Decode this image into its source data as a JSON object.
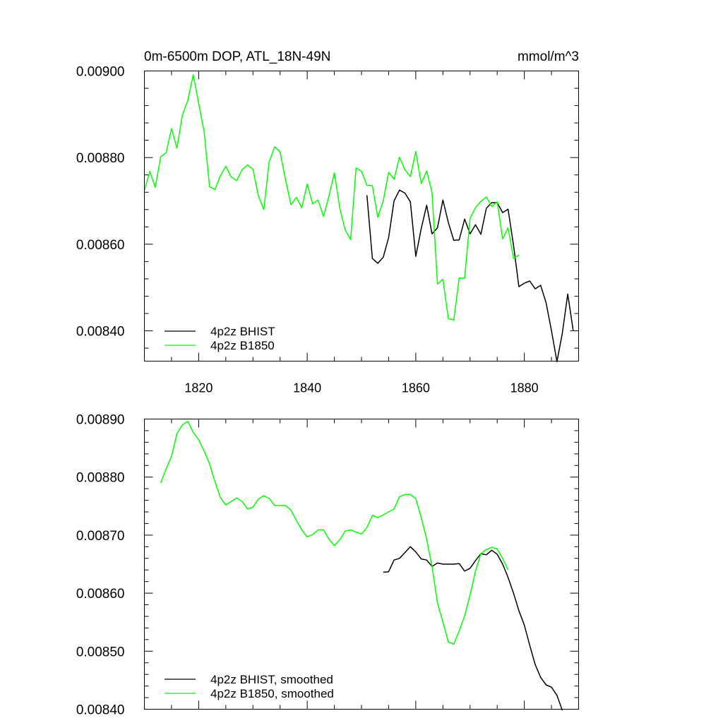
{
  "chart_data": [
    {
      "type": "line",
      "title": "0m-6500m DOP, ATL_18N-49N",
      "units": "mmol/m^3",
      "xlim": [
        1810,
        1890
      ],
      "ylim": [
        0.00833,
        0.009
      ],
      "xticks": [
        1820,
        1840,
        1860,
        1880
      ],
      "yticks": [
        0.0084,
        0.0086,
        0.0088,
        0.009
      ],
      "ytick_labels": [
        "0.00840",
        "0.00860",
        "0.00880",
        "0.00900"
      ],
      "legend_position": "bottom-left",
      "series": [
        {
          "name": "4p2z BHIST",
          "color": "#000000",
          "x": [
            1851,
            1852,
            1853,
            1854,
            1855,
            1856,
            1857,
            1858,
            1859,
            1860,
            1861,
            1862,
            1863,
            1864,
            1865,
            1866,
            1867,
            1868,
            1869,
            1870,
            1871,
            1872,
            1873,
            1874,
            1875,
            1876,
            1877,
            1878,
            1879,
            1880,
            1881,
            1882,
            1883,
            1884,
            1885,
            1886,
            1887,
            1888,
            1889
          ],
          "values": [
            0.008713,
            0.008567,
            0.008556,
            0.00857,
            0.008615,
            0.0087,
            0.008725,
            0.008718,
            0.008698,
            0.008572,
            0.008636,
            0.00869,
            0.008624,
            0.008638,
            0.008702,
            0.00865,
            0.008609,
            0.00861,
            0.008658,
            0.008624,
            0.008645,
            0.008623,
            0.008683,
            0.008696,
            0.008696,
            0.008673,
            0.008681,
            0.008598,
            0.008502,
            0.00851,
            0.008515,
            0.008497,
            0.008505,
            0.008465,
            0.0084,
            0.008329,
            0.008394,
            0.008485,
            0.008401
          ]
        },
        {
          "name": "4p2z B1850",
          "color": "#00ff00",
          "x": [
            1810,
            1811,
            1812,
            1813,
            1814,
            1815,
            1816,
            1817,
            1818,
            1819,
            1820,
            1821,
            1822,
            1823,
            1824,
            1825,
            1826,
            1827,
            1828,
            1829,
            1830,
            1831,
            1832,
            1833,
            1834,
            1835,
            1836,
            1837,
            1838,
            1839,
            1840,
            1841,
            1842,
            1843,
            1844,
            1845,
            1846,
            1847,
            1848,
            1849,
            1850,
            1851,
            1852,
            1853,
            1854,
            1855,
            1856,
            1857,
            1858,
            1859,
            1860,
            1861,
            1862,
            1863,
            1864,
            1865,
            1866,
            1867,
            1868,
            1869,
            1870,
            1871,
            1872,
            1873,
            1874,
            1875,
            1876,
            1877,
            1878,
            1879
          ],
          "values": [
            0.008724,
            0.008768,
            0.008731,
            0.008802,
            0.008811,
            0.008867,
            0.008822,
            0.008898,
            0.008932,
            0.008991,
            0.008925,
            0.00886,
            0.008733,
            0.008726,
            0.008758,
            0.00878,
            0.008755,
            0.008747,
            0.008772,
            0.008783,
            0.008773,
            0.008712,
            0.00868,
            0.00879,
            0.008825,
            0.008813,
            0.008749,
            0.008691,
            0.008708,
            0.008684,
            0.008739,
            0.008693,
            0.008702,
            0.008664,
            0.008711,
            0.008765,
            0.008683,
            0.008633,
            0.00861,
            0.008776,
            0.008768,
            0.008736,
            0.008735,
            0.008662,
            0.0087,
            0.008766,
            0.00875,
            0.008801,
            0.008772,
            0.008756,
            0.008814,
            0.00874,
            0.008769,
            0.00872,
            0.008508,
            0.008519,
            0.008428,
            0.008425,
            0.008522,
            0.008521,
            0.00866,
            0.008684,
            0.008699,
            0.008709,
            0.008687,
            0.008698,
            0.008612,
            0.008638,
            0.008567,
            0.008575
          ]
        }
      ]
    },
    {
      "type": "line",
      "title": "",
      "xlim": [
        1810,
        1890
      ],
      "ylim": [
        0.0084,
        0.0089
      ],
      "xticks": [
        1820,
        1840,
        1860,
        1880
      ],
      "yticks": [
        0.0084,
        0.0085,
        0.0086,
        0.0087,
        0.0088,
        0.0089
      ],
      "ytick_labels": [
        "0.00840",
        "0.00850",
        "0.00860",
        "0.00870",
        "0.00880",
        "0.00890"
      ],
      "legend_position": "bottom-left",
      "series": [
        {
          "name": "4p2z BHIST, smoothed",
          "color": "#000000",
          "x": [
            1854,
            1855,
            1856,
            1857,
            1858,
            1859,
            1860,
            1861,
            1862,
            1863,
            1864,
            1865,
            1866,
            1867,
            1868,
            1869,
            1870,
            1871,
            1872,
            1873,
            1874,
            1875,
            1876,
            1877,
            1878,
            1879,
            1880,
            1881,
            1882,
            1883,
            1884,
            1885,
            1886,
            1887
          ],
          "values": [
            0.008636,
            0.008637,
            0.008657,
            0.00866,
            0.00867,
            0.00868,
            0.008671,
            0.008659,
            0.008657,
            0.008646,
            0.008652,
            0.00865,
            0.00865,
            0.00865,
            0.008651,
            0.008638,
            0.008643,
            0.008656,
            0.008668,
            0.008666,
            0.008674,
            0.008667,
            0.00865,
            0.008627,
            0.0086,
            0.00857,
            0.008545,
            0.00851,
            0.008477,
            0.008455,
            0.008442,
            0.008438,
            0.008424,
            0.008398
          ]
        },
        {
          "name": "4p2z B1850, smoothed",
          "color": "#00ff00",
          "x": [
            1813,
            1814,
            1815,
            1816,
            1817,
            1818,
            1819,
            1820,
            1821,
            1822,
            1823,
            1824,
            1825,
            1826,
            1827,
            1828,
            1829,
            1830,
            1831,
            1832,
            1833,
            1834,
            1835,
            1836,
            1837,
            1838,
            1839,
            1840,
            1841,
            1842,
            1843,
            1844,
            1845,
            1846,
            1847,
            1848,
            1849,
            1850,
            1851,
            1852,
            1853,
            1854,
            1855,
            1856,
            1857,
            1858,
            1859,
            1860,
            1861,
            1862,
            1863,
            1864,
            1865,
            1866,
            1867,
            1868,
            1869,
            1870,
            1871,
            1872,
            1873,
            1874,
            1875,
            1876,
            1877
          ],
          "values": [
            0.00879,
            0.008814,
            0.008836,
            0.008875,
            0.00889,
            0.008896,
            0.008877,
            0.008864,
            0.008845,
            0.008823,
            0.008792,
            0.008765,
            0.008752,
            0.008758,
            0.008764,
            0.008758,
            0.008745,
            0.008748,
            0.008762,
            0.008768,
            0.008763,
            0.008751,
            0.008751,
            0.008751,
            0.008743,
            0.008725,
            0.008709,
            0.008697,
            0.008701,
            0.008709,
            0.008709,
            0.008693,
            0.008682,
            0.008692,
            0.008707,
            0.008709,
            0.008705,
            0.008702,
            0.008713,
            0.008734,
            0.00873,
            0.008735,
            0.00874,
            0.008745,
            0.008766,
            0.00877,
            0.00877,
            0.008763,
            0.00873,
            0.008693,
            0.008646,
            0.008583,
            0.00855,
            0.008516,
            0.008512,
            0.008535,
            0.008561,
            0.008597,
            0.008638,
            0.008668,
            0.008675,
            0.008679,
            0.008676,
            0.00866,
            0.00864
          ]
        }
      ]
    }
  ]
}
